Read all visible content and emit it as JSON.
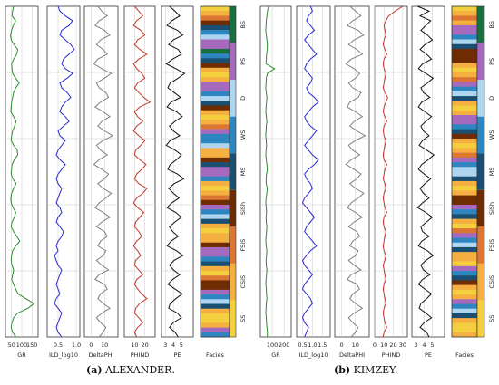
{
  "captions": [
    {
      "tag": "(a)",
      "text": "ALEXANDER."
    },
    {
      "tag": "(b)",
      "text": "KIMZEY."
    }
  ],
  "colors": {
    "GR": "#2e8b2e",
    "ILD_log10": "#2a2ad0",
    "DeltaPHI": "#808080",
    "PHIND": "#c0392b",
    "PE": "#111111",
    "grid": "#c8c8c8"
  },
  "facies_legend": [
    {
      "code": "SS",
      "color": "#F4D03F"
    },
    {
      "code": "CSiS",
      "color": "#F5B041"
    },
    {
      "code": "FSiS",
      "color": "#DC7633"
    },
    {
      "code": "SiSh",
      "color": "#6E2C00"
    },
    {
      "code": "MS",
      "color": "#1B4F72"
    },
    {
      "code": "WS",
      "color": "#2E86C1"
    },
    {
      "code": "D",
      "color": "#AED6F1"
    },
    {
      "code": "PS",
      "color": "#A569BD"
    },
    {
      "code": "BS",
      "color": "#196F3D"
    }
  ],
  "chart_data": [
    {
      "type": "line",
      "panel": "a",
      "orientation": "vertical well log",
      "grid": true,
      "tracks": [
        {
          "name": "GR",
          "xlabel": "GR",
          "ticks": [
            "50",
            "100",
            "150"
          ],
          "xlim": [
            20,
            180
          ],
          "values": [
            60,
            55,
            52,
            70,
            58,
            50,
            45,
            48,
            62,
            80,
            75,
            60,
            50,
            52,
            55,
            70,
            88,
            70,
            60,
            55,
            50,
            48,
            46,
            60,
            72,
            65,
            55,
            50,
            48,
            60,
            78,
            80,
            64,
            52,
            50,
            48,
            56,
            72,
            60,
            50,
            46,
            48,
            58,
            70,
            64,
            52,
            48,
            60,
            75,
            90,
            70,
            55,
            50,
            48,
            52,
            60,
            55,
            50,
            60,
            70,
            82,
            120,
            160,
            130,
            80,
            60,
            52,
            48,
            55,
            70
          ]
        },
        {
          "name": "ILD_log10",
          "xlabel": "ILD_log10",
          "ticks": [
            "0.5",
            "1.0"
          ],
          "xlim": [
            0.2,
            1.1
          ],
          "values": [
            0.5,
            0.55,
            0.7,
            0.9,
            0.8,
            0.6,
            0.55,
            0.7,
            0.85,
            0.95,
            0.8,
            0.65,
            0.6,
            0.7,
            0.9,
            0.75,
            0.55,
            0.6,
            0.75,
            0.85,
            0.7,
            0.6,
            0.55,
            0.7,
            0.8,
            0.65,
            0.5,
            0.55,
            0.7,
            0.6,
            0.5,
            0.45,
            0.55,
            0.7,
            0.6,
            0.5,
            0.45,
            0.5,
            0.6,
            0.55,
            0.5,
            0.45,
            0.55,
            0.6,
            0.5,
            0.45,
            0.55,
            0.65,
            0.6,
            0.5,
            0.45,
            0.5,
            0.4,
            0.45,
            0.5,
            0.6,
            0.55,
            0.5,
            0.45,
            0.5,
            0.55,
            0.45,
            0.4,
            0.5,
            0.6,
            0.55,
            0.5,
            0.45,
            0.5,
            0.6
          ]
        },
        {
          "name": "DeltaPHI",
          "xlabel": "DeltaPHI",
          "ticks": [
            "0",
            "10"
          ],
          "xlim": [
            -5,
            20
          ],
          "values": [
            5,
            8,
            12,
            6,
            3,
            10,
            14,
            7,
            4,
            9,
            12,
            5,
            2,
            8,
            15,
            10,
            4,
            6,
            11,
            13,
            7,
            3,
            9,
            14,
            8,
            5,
            10,
            16,
            9,
            4,
            7,
            12,
            6,
            2,
            8,
            13,
            10,
            5,
            9,
            15,
            11,
            6,
            3,
            9,
            14,
            8,
            4,
            10,
            12,
            7,
            5,
            11,
            9,
            4,
            8,
            13,
            6,
            3,
            10,
            12,
            7,
            5,
            9,
            14,
            8,
            4,
            7,
            11,
            9,
            6
          ]
        },
        {
          "name": "PHIND",
          "xlabel": "PHIND",
          "ticks": [
            "10",
            "20"
          ],
          "xlim": [
            0,
            30
          ],
          "values": [
            10,
            14,
            18,
            12,
            9,
            16,
            20,
            13,
            10,
            15,
            22,
            14,
            9,
            12,
            17,
            20,
            13,
            10,
            14,
            19,
            25,
            15,
            10,
            13,
            18,
            12,
            9,
            14,
            20,
            16,
            11,
            10,
            15,
            21,
            17,
            12,
            10,
            14,
            22,
            18,
            12,
            9,
            13,
            19,
            15,
            11,
            10,
            14,
            17,
            12,
            9,
            13,
            16,
            11,
            10,
            14,
            18,
            12,
            10,
            13,
            17,
            22,
            15,
            11,
            10,
            14,
            18,
            13,
            10,
            12
          ]
        },
        {
          "name": "PE",
          "xlabel": "PE",
          "ticks": [
            "3",
            "4",
            "5"
          ],
          "xlim": [
            2.5,
            6.5
          ],
          "values": [
            3.5,
            4.2,
            4.8,
            3.8,
            3.2,
            4.5,
            5.2,
            4,
            3.4,
            4.6,
            5,
            3.9,
            3.1,
            4.3,
            5.4,
            4.6,
            3.6,
            3.3,
            4.1,
            4.9,
            3.7,
            3.2,
            4.4,
            5.1,
            4.2,
            3.5,
            4,
            4.8,
            3.6,
            3.1,
            4.2,
            5,
            4.4,
            3.6,
            3.3,
            4.5,
            5.3,
            4.1,
            3.4,
            4,
            4.7,
            3.8,
            3.2,
            4.3,
            5,
            4.2,
            3.5,
            3.9,
            4.6,
            3.7,
            3.2,
            4.4,
            5.2,
            4.1,
            3.5,
            4,
            4.8,
            3.9,
            3.3,
            4.2,
            5.1,
            4.3,
            3.6,
            3.4,
            4.5,
            5,
            4,
            3.5,
            4.2,
            4.6
          ]
        }
      ],
      "facies_track": {
        "xlabel": "Facies",
        "sequence": [
          "SS",
          "CSiS",
          "FSiS",
          "SiSh",
          "MS",
          "WS",
          "D",
          "PS",
          "PS",
          "BS",
          "WS",
          "MS",
          "SiSh",
          "CSiS",
          "SS",
          "CSiS",
          "PS",
          "PS",
          "WS",
          "D",
          "MS",
          "SiSh",
          "CSiS",
          "SS",
          "CSiS",
          "FSiS",
          "PS",
          "WS",
          "WS",
          "D",
          "CSiS",
          "CSiS",
          "SiSh",
          "MS",
          "PS",
          "PS",
          "WS",
          "CSiS",
          "SS",
          "CSiS",
          "FSiS",
          "SiSh",
          "PS",
          "WS",
          "D",
          "MS",
          "CSiS",
          "SS",
          "CSiS",
          "CSiS",
          "SiSh",
          "PS",
          "PS",
          "WS",
          "MS",
          "CSiS",
          "SS",
          "FSiS",
          "SiSh",
          "SiSh",
          "PS",
          "WS",
          "D",
          "MS",
          "CSiS",
          "SS",
          "SS",
          "CSiS",
          "PS",
          "WS"
        ]
      }
    },
    {
      "type": "line",
      "panel": "b",
      "orientation": "vertical well log",
      "grid": true,
      "tracks": [
        {
          "name": "GR",
          "xlabel": "GR",
          "ticks": [
            "100",
            "200"
          ],
          "xlim": [
            0,
            260
          ],
          "values": [
            70,
            60,
            55,
            50,
            48,
            45,
            50,
            55,
            60,
            58,
            52,
            50,
            48,
            120,
            60,
            50,
            48,
            45,
            50,
            55,
            52,
            48,
            46,
            50,
            55,
            50,
            48,
            45,
            50,
            52,
            48,
            46,
            50,
            55,
            60,
            52,
            48,
            50,
            58,
            54,
            48,
            46,
            50,
            52,
            48,
            50,
            55,
            52,
            48,
            46,
            50,
            54,
            52,
            48,
            50,
            55,
            52,
            48,
            46,
            50,
            52,
            55,
            50,
            48,
            46,
            50,
            52,
            55,
            60,
            58
          ]
        },
        {
          "name": "ILD_log10",
          "xlabel": "ILD_log10",
          "ticks": [
            "0.5",
            "1.0",
            "1.5"
          ],
          "xlim": [
            0.2,
            1.9
          ],
          "values": [
            0.9,
            1.0,
            0.8,
            0.7,
            0.9,
            1.1,
            0.8,
            0.6,
            0.8,
            1.0,
            1.2,
            0.9,
            0.7,
            0.6,
            0.8,
            1.0,
            0.9,
            0.7,
            0.8,
            1.1,
            1.3,
            1.0,
            0.8,
            0.6,
            0.7,
            0.9,
            1.2,
            1.0,
            0.8,
            0.6,
            0.8,
            1.0,
            1.3,
            1.1,
            0.8,
            0.6,
            0.7,
            0.9,
            1.0,
            0.8,
            0.6,
            0.5,
            0.7,
            0.9,
            1.1,
            0.9,
            0.7,
            0.6,
            0.8,
            1.0,
            1.2,
            0.9,
            0.7,
            0.5,
            0.6,
            0.8,
            1.0,
            0.8,
            0.6,
            0.5,
            0.7,
            0.9,
            1.0,
            0.8,
            0.6,
            0.5,
            0.6,
            0.8,
            0.7,
            0.6
          ]
        },
        {
          "name": "DeltaPHI",
          "xlabel": "DeltaPHI",
          "ticks": [
            "0",
            "10"
          ],
          "xlim": [
            -5,
            20
          ],
          "values": [
            6,
            10,
            14,
            8,
            4,
            12,
            16,
            9,
            5,
            11,
            15,
            7,
            3,
            9,
            13,
            10,
            5,
            8,
            14,
            12,
            6,
            4,
            10,
            15,
            9,
            6,
            11,
            17,
            10,
            5,
            8,
            13,
            7,
            3,
            9,
            14,
            11,
            6,
            10,
            16,
            12,
            7,
            4,
            10,
            15,
            9,
            5,
            11,
            13,
            8,
            6,
            12,
            10,
            5,
            9,
            14,
            7,
            4,
            11,
            13,
            8,
            6,
            10,
            15,
            9,
            5,
            8,
            12,
            10,
            7
          ]
        },
        {
          "name": "PHIND",
          "xlabel": "PHIND",
          "ticks": [
            "0",
            "10",
            "20",
            "30"
          ],
          "xlim": [
            0,
            35
          ],
          "values": [
            30,
            22,
            15,
            12,
            10,
            11,
            12,
            10,
            9,
            11,
            13,
            10,
            9,
            10,
            12,
            11,
            10,
            9,
            11,
            14,
            12,
            10,
            9,
            11,
            13,
            10,
            9,
            10,
            12,
            11,
            10,
            9,
            10,
            13,
            11,
            10,
            9,
            11,
            12,
            10,
            9,
            10,
            11,
            13,
            10,
            9,
            10,
            12,
            11,
            10,
            9,
            10,
            12,
            11,
            9,
            10,
            11,
            12,
            10,
            9,
            10,
            11,
            12,
            10,
            9,
            10,
            11,
            13,
            10,
            9
          ]
        },
        {
          "name": "PE",
          "xlabel": "PE",
          "ticks": [
            "3",
            "4",
            "5"
          ],
          "xlim": [
            2.5,
            6.5
          ],
          "values": [
            3.2,
            4.6,
            3.5,
            4.8,
            4.2,
            3.6,
            4.4,
            5.0,
            4.1,
            3.5,
            4.3,
            4.9,
            3.8,
            3.3,
            4.2,
            5.1,
            4.4,
            3.6,
            3.9,
            4.7,
            3.7,
            3.3,
            4.1,
            4.9,
            4.2,
            3.6,
            3.9,
            4.6,
            3.8,
            3.4,
            4.3,
            5.2,
            4.5,
            3.7,
            3.3,
            4.0,
            4.8,
            4.1,
            3.5,
            3.9,
            4.6,
            3.8,
            3.2,
            4.2,
            5.0,
            4.3,
            3.6,
            3.8,
            4.6,
            3.7,
            3.3,
            4.4,
            5.1,
            4.2,
            3.6,
            3.9,
            4.7,
            3.8,
            3.3,
            4.1,
            4.9,
            4.3,
            3.6,
            3.4,
            4.2,
            4.9,
            4.0,
            3.5,
            4.3,
            4.6
          ]
        }
      ],
      "facies_track": {
        "xlabel": "Facies",
        "sequence": [
          "SS",
          "CSiS",
          "FSiS",
          "CSiS",
          "PS",
          "PS",
          "WS",
          "D",
          "MS",
          "SiSh",
          "SiSh",
          "SiSh",
          "CSiS",
          "SS",
          "CSiS",
          "FSiS",
          "PS",
          "WS",
          "D",
          "MS",
          "CSiS",
          "SS",
          "CSiS",
          "PS",
          "PS",
          "WS",
          "MS",
          "SiSh",
          "CSiS",
          "SS",
          "CSiS",
          "FSiS",
          "PS",
          "WS",
          "D",
          "D",
          "MS",
          "CSiS",
          "SS",
          "CSiS",
          "SiSh",
          "SiSh",
          "PS",
          "WS",
          "MS",
          "CSiS",
          "SS",
          "FSiS",
          "PS",
          "WS",
          "D",
          "MS",
          "CSiS",
          "CSiS",
          "SS",
          "PS",
          "WS",
          "MS",
          "SiSh",
          "CSiS",
          "SS",
          "CSiS",
          "PS",
          "WS",
          "D",
          "MS",
          "CSiS",
          "SS",
          "SS",
          "CSiS"
        ]
      }
    }
  ]
}
